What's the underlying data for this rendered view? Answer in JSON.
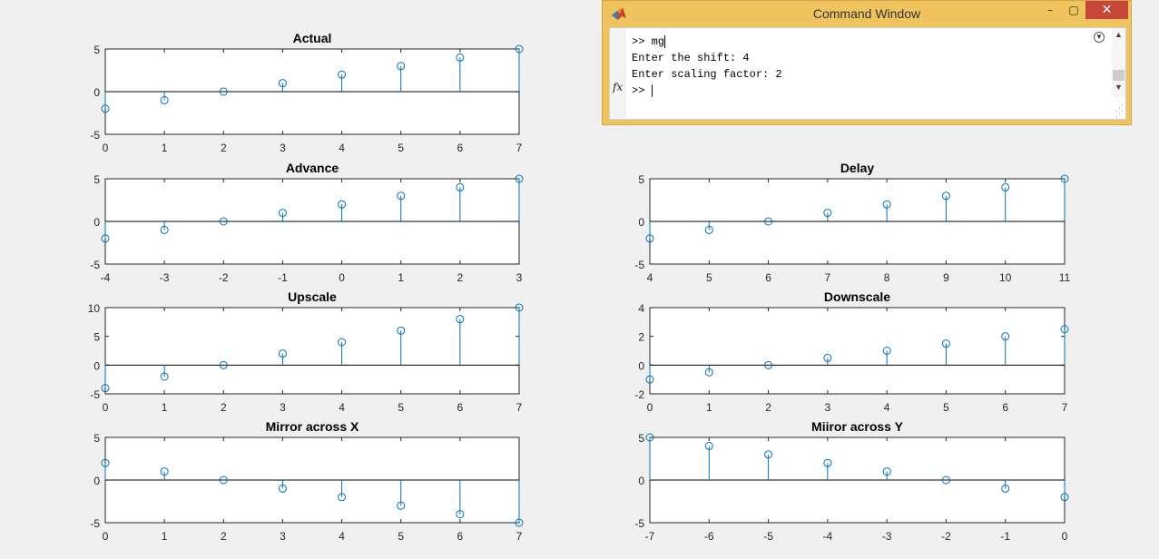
{
  "chart_data": [
    {
      "type": "stem",
      "title": "Actual",
      "x": [
        0,
        1,
        2,
        3,
        4,
        5,
        6,
        7
      ],
      "y": [
        -2,
        -1,
        0,
        1,
        2,
        3,
        4,
        5
      ],
      "xlim": [
        0,
        7
      ],
      "ylim": [
        -5,
        5
      ],
      "xticks": [
        "0",
        "1",
        "2",
        "3",
        "4",
        "5",
        "6",
        "7"
      ],
      "yticks": [
        "-5",
        "0",
        "5"
      ],
      "color": "#0072bd"
    },
    {
      "type": "stem",
      "title": "Advance",
      "x": [
        -4,
        -3,
        -2,
        -1,
        0,
        1,
        2,
        3
      ],
      "y": [
        -2,
        -1,
        0,
        1,
        2,
        3,
        4,
        5
      ],
      "xlim": [
        -4,
        3
      ],
      "ylim": [
        -5,
        5
      ],
      "xticks": [
        "-4",
        "-3",
        "-2",
        "-1",
        "0",
        "1",
        "2",
        "3"
      ],
      "yticks": [
        "-5",
        "0",
        "5"
      ],
      "color": "#0072bd"
    },
    {
      "type": "stem",
      "title": "Delay",
      "x": [
        4,
        5,
        6,
        7,
        8,
        9,
        10,
        11
      ],
      "y": [
        -2,
        -1,
        0,
        1,
        2,
        3,
        4,
        5
      ],
      "xlim": [
        4,
        11
      ],
      "ylim": [
        -5,
        5
      ],
      "xticks": [
        "4",
        "5",
        "6",
        "7",
        "8",
        "9",
        "10",
        "11"
      ],
      "yticks": [
        "-5",
        "0",
        "5"
      ],
      "color": "#0072bd"
    },
    {
      "type": "stem",
      "title": "Upscale",
      "x": [
        0,
        1,
        2,
        3,
        4,
        5,
        6,
        7
      ],
      "y": [
        -4,
        -2,
        0,
        2,
        4,
        6,
        8,
        10
      ],
      "xlim": [
        0,
        7
      ],
      "ylim": [
        -5,
        10
      ],
      "xticks": [
        "0",
        "1",
        "2",
        "3",
        "4",
        "5",
        "6",
        "7"
      ],
      "yticks": [
        "-5",
        "0",
        "5",
        "10"
      ],
      "color": "#0072bd"
    },
    {
      "type": "stem",
      "title": "Downscale",
      "x": [
        0,
        1,
        2,
        3,
        4,
        5,
        6,
        7
      ],
      "y": [
        -1,
        -0.5,
        0,
        0.5,
        1,
        1.5,
        2,
        2.5
      ],
      "xlim": [
        0,
        7
      ],
      "ylim": [
        -2,
        4
      ],
      "xticks": [
        "0",
        "1",
        "2",
        "3",
        "4",
        "5",
        "6",
        "7"
      ],
      "yticks": [
        "-2",
        "0",
        "2",
        "4"
      ],
      "color": "#0072bd"
    },
    {
      "type": "stem",
      "title": "Mirror across X",
      "x": [
        0,
        1,
        2,
        3,
        4,
        5,
        6,
        7
      ],
      "y": [
        2,
        1,
        0,
        -1,
        -2,
        -3,
        -4,
        -5
      ],
      "xlim": [
        0,
        7
      ],
      "ylim": [
        -5,
        5
      ],
      "xticks": [
        "0",
        "1",
        "2",
        "3",
        "4",
        "5",
        "6",
        "7"
      ],
      "yticks": [
        "-5",
        "0",
        "5"
      ],
      "color": "#0072bd"
    },
    {
      "type": "stem",
      "title": "Miiror across Y",
      "x": [
        -7,
        -6,
        -5,
        -4,
        -3,
        -2,
        -1,
        0
      ],
      "y": [
        5,
        4,
        3,
        2,
        1,
        0,
        -1,
        -2
      ],
      "xlim": [
        -7,
        0
      ],
      "ylim": [
        -5,
        5
      ],
      "xticks": [
        "-7",
        "-6",
        "-5",
        "-4",
        "-3",
        "-2",
        "-1",
        "0"
      ],
      "yticks": [
        "-5",
        "0",
        "5"
      ],
      "color": "#0072bd"
    }
  ],
  "command_window": {
    "title": "Command Window",
    "minimize_glyph": "–",
    "maximize_glyph": "▢",
    "close_glyph": "✕",
    "fx_label": "fx",
    "lines": [
      ">> mg",
      "Enter the shift: 4",
      "Enter scaling factor: 2",
      ">> "
    ],
    "icons": {
      "logo": "matlab-logo-icon",
      "options": "chevron-down-circle-icon"
    },
    "colors": {
      "titlebar": "#efc45f",
      "close": "#c7463a"
    }
  }
}
